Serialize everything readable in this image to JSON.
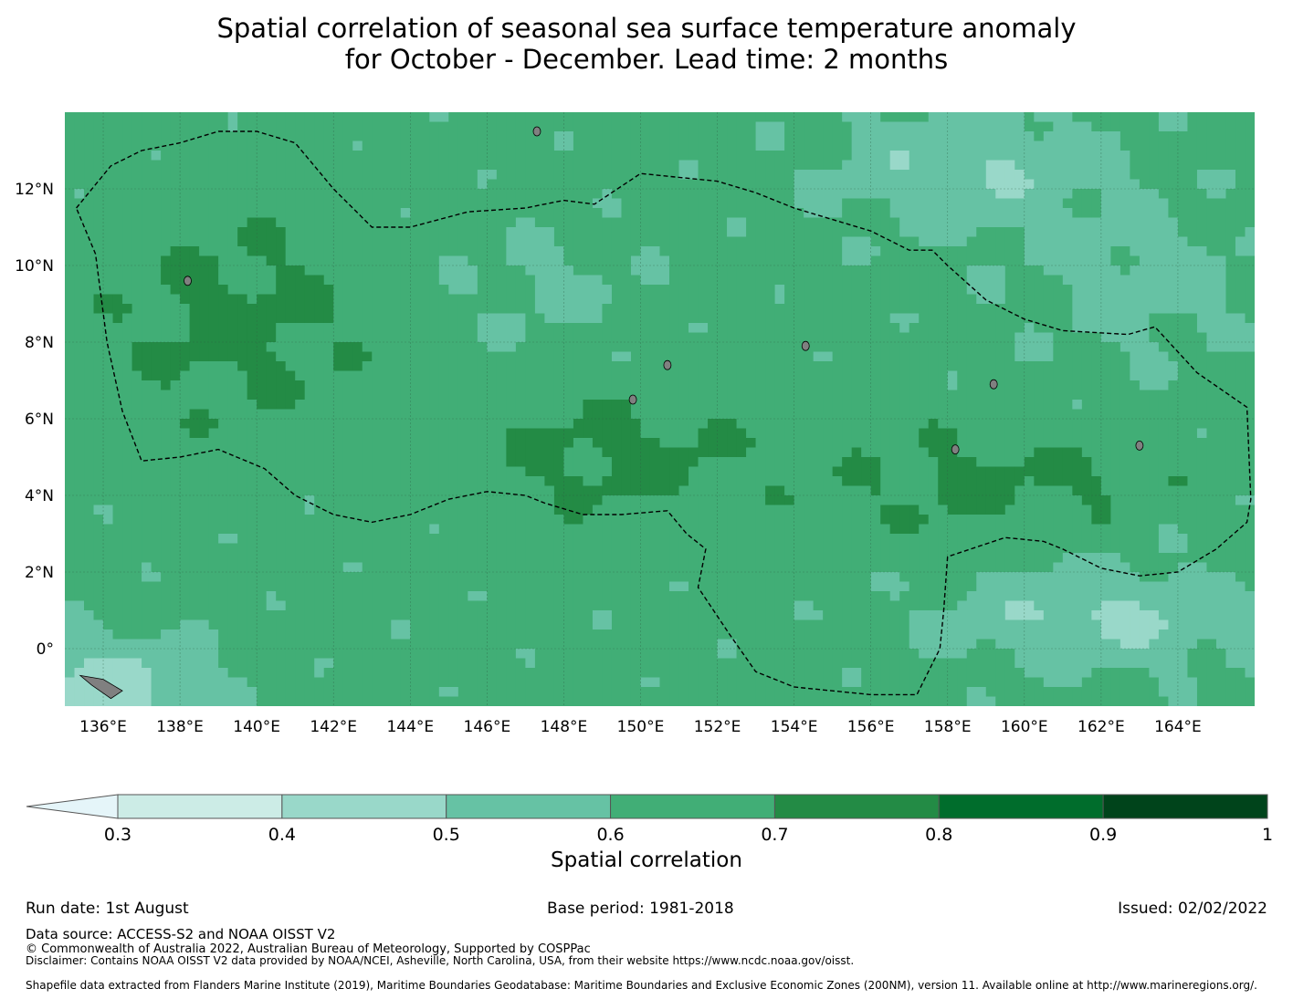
{
  "title": {
    "line1": "Spatial correlation of seasonal sea surface temperature anomaly",
    "line2": "for October - December. Lead time: 2 months"
  },
  "map": {
    "lon_ticks": [
      "136°E",
      "138°E",
      "140°E",
      "142°E",
      "144°E",
      "146°E",
      "148°E",
      "150°E",
      "152°E",
      "154°E",
      "156°E",
      "158°E",
      "160°E",
      "162°E",
      "164°E"
    ],
    "lat_ticks": [
      "12°N",
      "10°N",
      "8°N",
      "6°N",
      "4°N",
      "2°N",
      "0°"
    ],
    "lon_values": [
      136,
      138,
      140,
      142,
      144,
      146,
      148,
      150,
      152,
      154,
      156,
      158,
      160,
      162,
      164
    ],
    "lat_values": [
      12,
      10,
      8,
      6,
      4,
      2,
      0
    ],
    "extent": {
      "lon_min": 135,
      "lon_max": 166,
      "lat_min": -1.5,
      "lat_max": 14
    },
    "eez_boundary": [
      [
        135.3,
        11.5
      ],
      [
        136.2,
        12.6
      ],
      [
        137.0,
        13.0
      ],
      [
        138.0,
        13.2
      ],
      [
        139.0,
        13.5
      ],
      [
        140.0,
        13.5
      ],
      [
        141.0,
        13.2
      ],
      [
        142.0,
        12.0
      ],
      [
        143.0,
        11.0
      ],
      [
        144.0,
        11.0
      ],
      [
        145.5,
        11.4
      ],
      [
        147.0,
        11.5
      ],
      [
        148.0,
        11.7
      ],
      [
        148.8,
        11.6
      ],
      [
        150.0,
        12.4
      ],
      [
        151.0,
        12.3
      ],
      [
        152.0,
        12.2
      ],
      [
        153.0,
        11.9
      ],
      [
        154.0,
        11.5
      ],
      [
        155.0,
        11.2
      ],
      [
        156.0,
        10.9
      ],
      [
        157.0,
        10.4
      ],
      [
        157.6,
        10.4
      ],
      [
        158.0,
        10.0
      ],
      [
        159.0,
        9.1
      ],
      [
        160.0,
        8.6
      ],
      [
        161.0,
        8.3
      ],
      [
        162.7,
        8.2
      ],
      [
        163.4,
        8.4
      ],
      [
        164.5,
        7.2
      ],
      [
        165.8,
        6.3
      ],
      [
        165.9,
        3.9
      ],
      [
        165.8,
        3.3
      ],
      [
        165.0,
        2.6
      ],
      [
        164.0,
        2.0
      ],
      [
        163.0,
        1.9
      ],
      [
        162.0,
        2.1
      ],
      [
        161.0,
        2.6
      ],
      [
        160.5,
        2.8
      ],
      [
        159.5,
        2.9
      ],
      [
        158.0,
        2.4
      ],
      [
        157.9,
        1.0
      ],
      [
        157.8,
        0.0
      ],
      [
        157.2,
        -1.2
      ],
      [
        156.0,
        -1.2
      ],
      [
        154.0,
        -1.0
      ],
      [
        153.0,
        -0.6
      ],
      [
        152.3,
        0.4
      ],
      [
        151.5,
        1.6
      ],
      [
        151.7,
        2.6
      ],
      [
        151.2,
        3.0
      ],
      [
        150.7,
        3.6
      ],
      [
        149.5,
        3.5
      ],
      [
        148.5,
        3.5
      ],
      [
        147.5,
        3.8
      ],
      [
        147.0,
        4.0
      ],
      [
        146.0,
        4.1
      ],
      [
        145.0,
        3.9
      ],
      [
        144.0,
        3.5
      ],
      [
        143.0,
        3.3
      ],
      [
        142.0,
        3.5
      ],
      [
        141.0,
        4.0
      ],
      [
        140.2,
        4.7
      ],
      [
        139.0,
        5.2
      ],
      [
        138.0,
        5.0
      ],
      [
        137.0,
        4.9
      ],
      [
        136.5,
        6.2
      ],
      [
        136.1,
        8.0
      ],
      [
        135.8,
        10.3
      ],
      [
        135.3,
        11.5
      ]
    ],
    "islands": [
      [
        147.3,
        13.5
      ],
      [
        138.2,
        9.6
      ],
      [
        159.2,
        6.9
      ],
      [
        163.0,
        5.3
      ],
      [
        150.7,
        7.4
      ],
      [
        154.3,
        7.9
      ],
      [
        149.8,
        6.5
      ],
      [
        158.2,
        5.2
      ]
    ],
    "land_color": "#808080"
  },
  "colorbar": {
    "label": "Spatial correlation",
    "ticks": [
      "0.3",
      "0.4",
      "0.5",
      "0.6",
      "0.7",
      "0.8",
      "0.9",
      "1"
    ],
    "colors": [
      "#e5f5f9",
      "#ccece6",
      "#99d8c9",
      "#66c2a4",
      "#41ae76",
      "#238b45",
      "#006d2c",
      "#00441b"
    ],
    "bins": [
      0.3,
      0.4,
      0.5,
      0.6,
      0.7,
      0.8,
      0.9,
      1.0
    ]
  },
  "footer": {
    "run_date": "Run date: 1st August",
    "base_period": "Base period: 1981-2018",
    "issued": "Issued: 02/02/2022",
    "data_source": "Data source: ACCESS-S2 and NOAA OISST V2",
    "copyright": "© Commonwealth of Australia 2022, Australian Bureau of Meteorology, Supported by COSPPac",
    "disclaimer": "Disclaimer: Contains NOAA OISST V2 data provided by NOAA/NCEI, Asheville, North Carolina, USA, from their website https://www.ncdc.noaa.gov/oisst.",
    "shapefile": "Shapefile data extracted from Flanders Marine Institute (2019), Maritime Boundaries Geodatabase: Maritime Boundaries and Exclusive Economic Zones (200NM), version 11. Available online at http://www.marineregions.org/."
  }
}
